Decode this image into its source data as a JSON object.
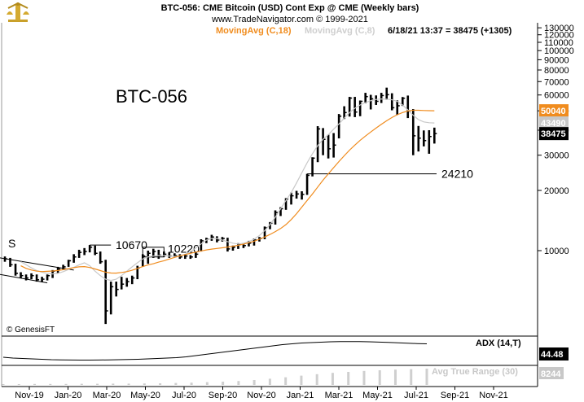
{
  "header": {
    "title": "BTC-056:  CME Bitcoin (USD) Cont Exp @ CME  (Weekly bars)",
    "subtitle": "www.TradeNavigator.com © 1999-2021",
    "ma18_label": "MovingAvg (C,18)",
    "ma8_label": "MovingAvg (C,8)",
    "quote": "6/18/21 13:37 = 38475 (+1305)"
  },
  "chart_data": {
    "type": "ohlc",
    "title": "BTC-056",
    "y_scale": "log",
    "ylim": [
      4200,
      135000
    ],
    "y_ticks": [
      10000,
      20000,
      30000,
      40000,
      50000,
      60000,
      70000,
      80000,
      90000,
      100000,
      110000,
      120000,
      130000
    ],
    "x_tick_labels": [
      "Nov-19",
      "Jan-20",
      "Mar-20",
      "May-20",
      "Jul-20",
      "Sep-20",
      "Nov-20",
      "Jan-21",
      "Mar-21",
      "May-21",
      "Jul-21",
      "Sep-21",
      "Nov-21"
    ],
    "annotations": [
      {
        "text": "10670",
        "value": 10670
      },
      {
        "text": "10220",
        "value": 10220
      },
      {
        "text": "24210",
        "value": 24210
      },
      {
        "text": "S",
        "value": 11500
      }
    ],
    "price_tags": [
      {
        "text": "50040",
        "value": 50040,
        "color": "#f08c1e"
      },
      {
        "text": "43490",
        "value": 43490,
        "color": "#c8c8c8"
      },
      {
        "text": "38475",
        "value": 38475,
        "color": "#000000"
      }
    ],
    "ma18": [
      8400,
      8150,
      8000,
      7900,
      7860,
      7880,
      7910,
      7960,
      8030,
      8130,
      8220,
      8300,
      8320,
      8240,
      8100,
      7950,
      7800,
      7730,
      7720,
      7780,
      7850,
      7980,
      8150,
      8320,
      8480,
      8600,
      8760,
      8900,
      9080,
      9250,
      9420,
      9560,
      9700,
      9830,
      9960,
      10080,
      10180,
      10260,
      10330,
      10420,
      10520,
      10640,
      10780,
      10950,
      11150,
      11400,
      11700,
      12050,
      12450,
      12900,
      13500,
      14300,
      15300,
      16500,
      17800,
      19200,
      20800,
      22500,
      24200,
      26000,
      27900,
      29800,
      31800,
      33700,
      35600,
      37400,
      39200,
      41000,
      42800,
      44600,
      46300,
      47800,
      49000,
      49900,
      50300,
      50300,
      50200,
      50100,
      50040
    ],
    "ma8": [
      8800,
      8500,
      8200,
      7950,
      7800,
      7700,
      7650,
      7700,
      7850,
      8050,
      8250,
      8500,
      8700,
      8400,
      7900,
      7500,
      7200,
      7100,
      7200,
      7500,
      7900,
      8300,
      8700,
      9100,
      9300,
      9400,
      9450,
      9450,
      9400,
      9350,
      9400,
      9600,
      9900,
      10300,
      10800,
      11300,
      11500,
      11500,
      11300,
      11100,
      10900,
      10800,
      10900,
      11100,
      11400,
      11900,
      12600,
      13500,
      14700,
      16200,
      17800,
      19500,
      21800,
      24500,
      27500,
      30500,
      33500,
      36000,
      38000,
      40500,
      43000,
      46000,
      49000,
      51500,
      53500,
      55000,
      56200,
      57000,
      57300,
      57200,
      56800,
      55800,
      53500,
      50500,
      47500,
      45200,
      44000,
      43600,
      43490
    ],
    "bars": [
      {
        "h": 9350,
        "l": 8800,
        "c": 9100
      },
      {
        "h": 9200,
        "l": 8300,
        "c": 8500
      },
      {
        "h": 8600,
        "l": 7500,
        "c": 7700
      },
      {
        "h": 7800,
        "l": 7300,
        "c": 7500
      },
      {
        "h": 7600,
        "l": 7100,
        "c": 7300
      },
      {
        "h": 7700,
        "l": 7200,
        "c": 7500
      },
      {
        "h": 7600,
        "l": 7000,
        "c": 7150
      },
      {
        "h": 7400,
        "l": 6950,
        "c": 7200
      },
      {
        "h": 7600,
        "l": 7100,
        "c": 7500
      },
      {
        "h": 8000,
        "l": 7300,
        "c": 7900
      },
      {
        "h": 8300,
        "l": 7700,
        "c": 8100
      },
      {
        "h": 8500,
        "l": 8000,
        "c": 8300
      },
      {
        "h": 9000,
        "l": 8300,
        "c": 8900
      },
      {
        "h": 9600,
        "l": 8700,
        "c": 9300
      },
      {
        "h": 10100,
        "l": 9200,
        "c": 9800
      },
      {
        "h": 10300,
        "l": 9500,
        "c": 9900
      },
      {
        "h": 10670,
        "l": 9800,
        "c": 10400
      },
      {
        "h": 10600,
        "l": 9500,
        "c": 9700
      },
      {
        "h": 9900,
        "l": 8600,
        "c": 8800
      },
      {
        "h": 9000,
        "l": 4300,
        "c": 5000
      },
      {
        "h": 7000,
        "l": 4800,
        "c": 6600
      },
      {
        "h": 7000,
        "l": 5900,
        "c": 6400
      },
      {
        "h": 7400,
        "l": 6400,
        "c": 6800
      },
      {
        "h": 7300,
        "l": 6600,
        "c": 7000
      },
      {
        "h": 7500,
        "l": 6800,
        "c": 7300
      },
      {
        "h": 8400,
        "l": 7200,
        "c": 8200
      },
      {
        "h": 9600,
        "l": 8300,
        "c": 9400
      },
      {
        "h": 10000,
        "l": 8600,
        "c": 9700
      },
      {
        "h": 10220,
        "l": 9200,
        "c": 9900
      },
      {
        "h": 10100,
        "l": 9100,
        "c": 9500
      },
      {
        "h": 9900,
        "l": 9300,
        "c": 9600
      },
      {
        "h": 9800,
        "l": 9200,
        "c": 9400
      },
      {
        "h": 9700,
        "l": 9300,
        "c": 9450
      },
      {
        "h": 9600,
        "l": 9100,
        "c": 9300
      },
      {
        "h": 9600,
        "l": 9100,
        "c": 9400
      },
      {
        "h": 9500,
        "l": 9100,
        "c": 9300
      },
      {
        "h": 9800,
        "l": 9200,
        "c": 9600
      },
      {
        "h": 11400,
        "l": 9900,
        "c": 11200
      },
      {
        "h": 11600,
        "l": 10900,
        "c": 11400
      },
      {
        "h": 12000,
        "l": 11200,
        "c": 11700
      },
      {
        "h": 11800,
        "l": 11000,
        "c": 11300
      },
      {
        "h": 11700,
        "l": 11100,
        "c": 11500
      },
      {
        "h": 11600,
        "l": 9900,
        "c": 10200
      },
      {
        "h": 10600,
        "l": 10000,
        "c": 10400
      },
      {
        "h": 10900,
        "l": 10200,
        "c": 10700
      },
      {
        "h": 10800,
        "l": 10300,
        "c": 10600
      },
      {
        "h": 11200,
        "l": 10500,
        "c": 10900
      },
      {
        "h": 11500,
        "l": 10600,
        "c": 11300
      },
      {
        "h": 11700,
        "l": 11100,
        "c": 11500
      },
      {
        "h": 13200,
        "l": 11400,
        "c": 13000
      },
      {
        "h": 13900,
        "l": 12800,
        "c": 13700
      },
      {
        "h": 15900,
        "l": 13500,
        "c": 15500
      },
      {
        "h": 16500,
        "l": 14900,
        "c": 16200
      },
      {
        "h": 18300,
        "l": 16000,
        "c": 18100
      },
      {
        "h": 19500,
        "l": 17000,
        "c": 18800
      },
      {
        "h": 19900,
        "l": 18200,
        "c": 19200
      },
      {
        "h": 19800,
        "l": 18000,
        "c": 19100
      },
      {
        "h": 24210,
        "l": 19000,
        "c": 23800
      },
      {
        "h": 29300,
        "l": 23500,
        "c": 29000
      },
      {
        "h": 41900,
        "l": 27700,
        "c": 40600
      },
      {
        "h": 41000,
        "l": 30000,
        "c": 36000
      },
      {
        "h": 38000,
        "l": 28900,
        "c": 32300
      },
      {
        "h": 38700,
        "l": 29200,
        "c": 33700
      },
      {
        "h": 48200,
        "l": 36400,
        "c": 47000
      },
      {
        "h": 52700,
        "l": 45500,
        "c": 49000
      },
      {
        "h": 58700,
        "l": 46800,
        "c": 57900
      },
      {
        "h": 58700,
        "l": 46500,
        "c": 49300
      },
      {
        "h": 56300,
        "l": 47000,
        "c": 55800
      },
      {
        "h": 61500,
        "l": 54500,
        "c": 58900
      },
      {
        "h": 60100,
        "l": 50800,
        "c": 57400
      },
      {
        "h": 59700,
        "l": 53500,
        "c": 55800
      },
      {
        "h": 61500,
        "l": 54700,
        "c": 59600
      },
      {
        "h": 65300,
        "l": 56800,
        "c": 60200
      },
      {
        "h": 61200,
        "l": 50300,
        "c": 51800
      },
      {
        "h": 56400,
        "l": 47700,
        "c": 53000
      },
      {
        "h": 58600,
        "l": 52900,
        "c": 57800
      },
      {
        "h": 59600,
        "l": 46000,
        "c": 49700
      },
      {
        "h": 51000,
        "l": 30000,
        "c": 37500
      },
      {
        "h": 42000,
        "l": 31300,
        "c": 36500
      },
      {
        "h": 39900,
        "l": 33200,
        "c": 35500
      },
      {
        "h": 40000,
        "l": 30500,
        "c": 37200
      },
      {
        "h": 41200,
        "l": 34300,
        "c": 38475
      }
    ]
  },
  "indicators": {
    "adx_label": "ADX (14,T)",
    "adx_value": "44.48",
    "adx_series": [
      28,
      27,
      26.5,
      26,
      25.5,
      25,
      24.8,
      24.6,
      24.5,
      24.5,
      24.6,
      24.8,
      25,
      25.2,
      25.5,
      26,
      26.5,
      27,
      27.5,
      28.5,
      30,
      31.5,
      33,
      34.5,
      36,
      37.5,
      39,
      40.5,
      42,
      43.5,
      44.5,
      45.5,
      46,
      46.5,
      47,
      47.2,
      47.3,
      47.2,
      47,
      46.6,
      46.2,
      45.7,
      45.2,
      44.8,
      44.48
    ],
    "atr_label": "Avg True Range (30)",
    "atr_value": "8244",
    "atr_series": [
      0.05,
      0.05,
      0.06,
      0.06,
      0.06,
      0.07,
      0.07,
      0.08,
      0.08,
      0.09,
      0.1,
      0.12,
      0.14,
      0.17,
      0.2,
      0.24,
      0.3,
      0.38,
      0.47,
      0.57,
      0.66,
      0.74,
      0.8,
      0.86,
      0.9,
      0.94,
      0.97,
      1.0
    ]
  },
  "watermark": "© GenesisFT"
}
